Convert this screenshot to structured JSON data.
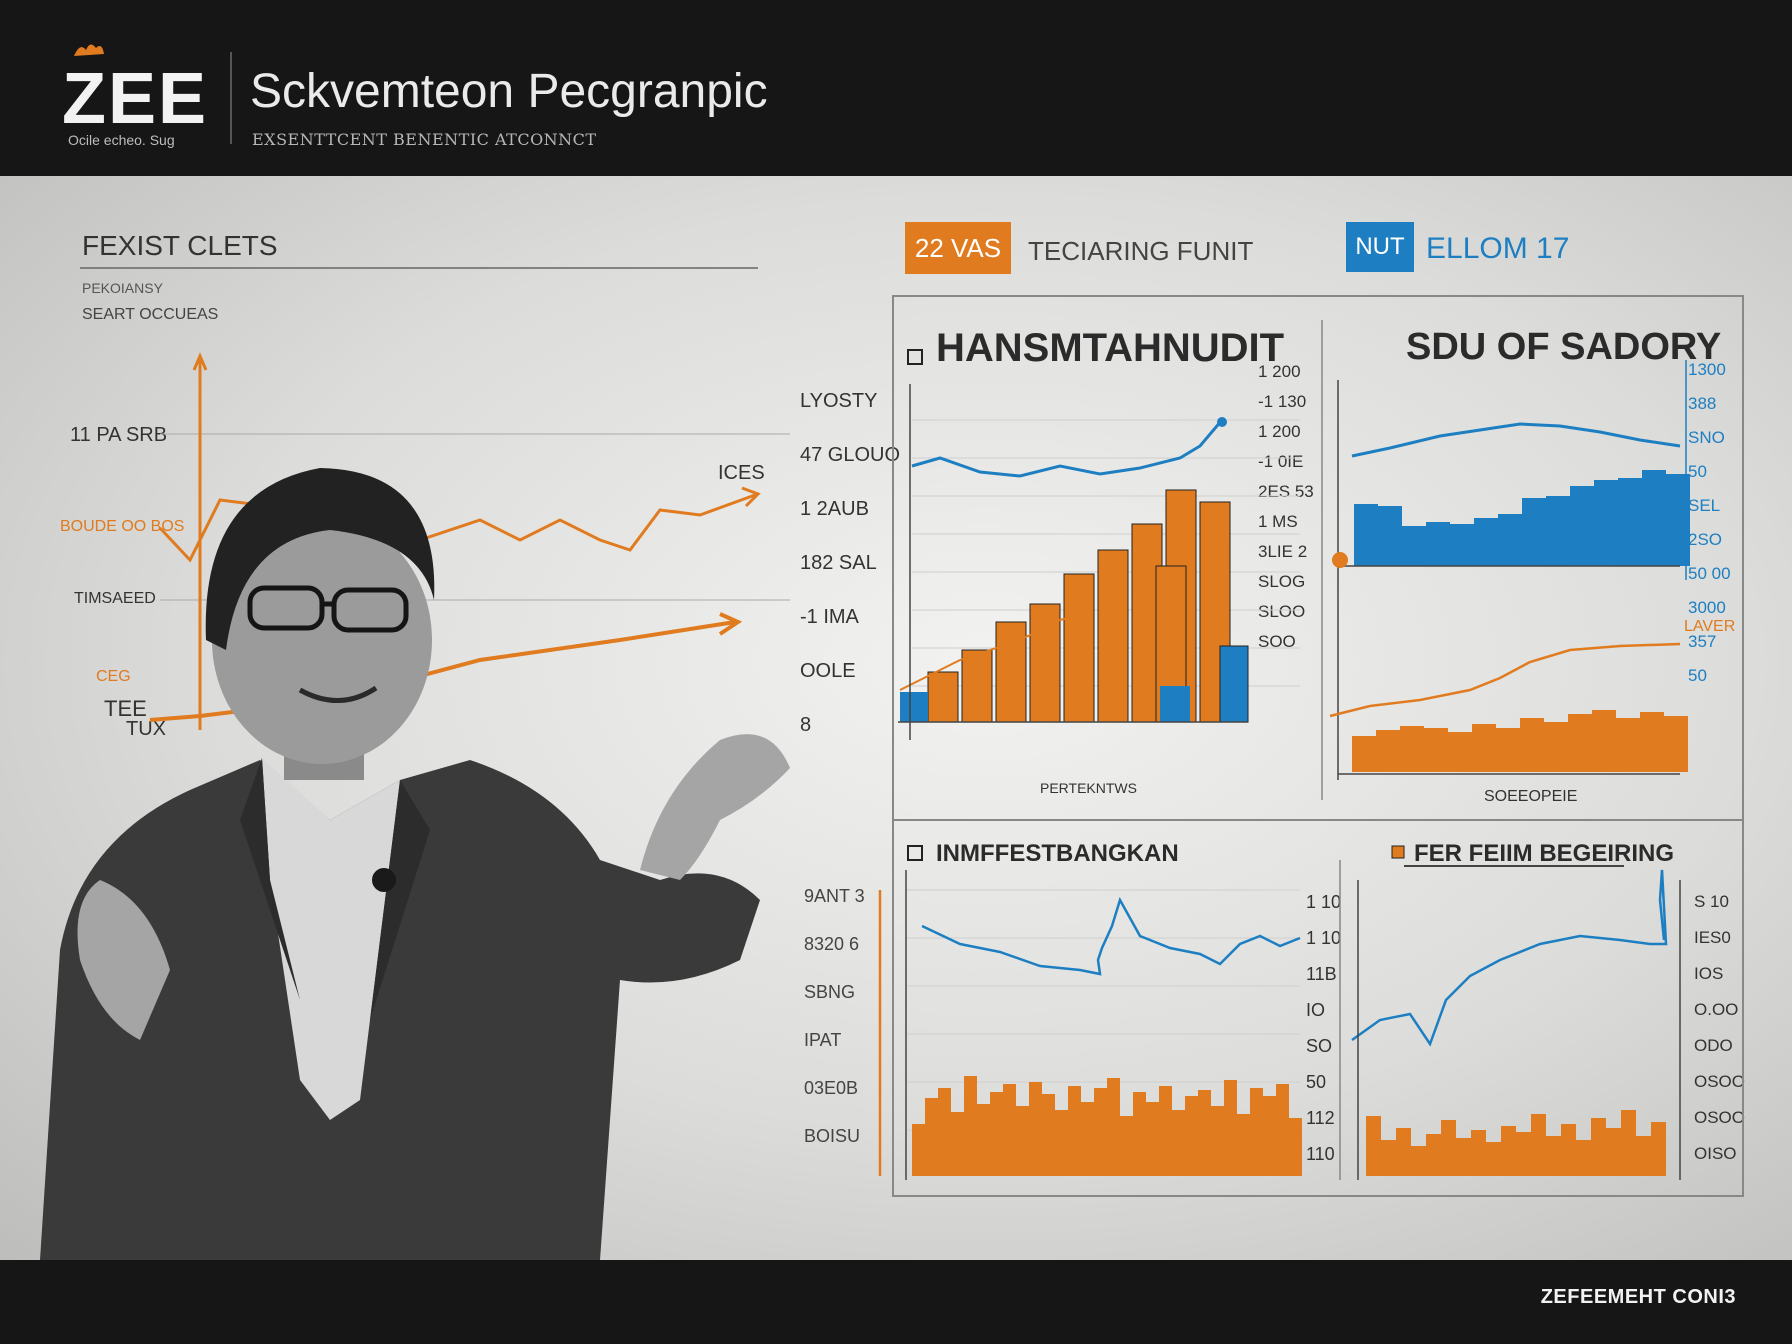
{
  "header": {
    "logo": "ZEE",
    "logo_tagline": "Ocile echeo. Sug",
    "title": "Sckvemteon Pecgranpic",
    "subtitle": "EXSENTTCENT  BENENTIC ATCONNCT"
  },
  "footer": {
    "label": "ZEFEEMEHT CONI3"
  },
  "left_panel": {
    "title": "FEXIST CLETS",
    "sub1": "PEKOIANSY",
    "sub2": "SEART OCCUEAS",
    "labels": [
      "11 PA SRB",
      "ICES",
      "BOUDE OO BOS",
      "TIMSAEED",
      "CEG",
      "TEE",
      "TUX"
    ]
  },
  "tags": {
    "orange_tag": "22 VAS",
    "orange_caption": "TECIARING FUNIT",
    "blue_tag": "NUT",
    "blue_caption": "ELLOM 17"
  },
  "charts": {
    "top_left_title": "HANSMTAHNUDIT",
    "top_right_title": "SDU OF SADORY",
    "bottom_left_title": "INMFFESTBANGKAN",
    "bottom_right_title": "FER FEIIM BEGEIRING",
    "top_left_xlabel": "PERTEKNTWS",
    "top_right_xlabel": "SOEEOPEIE",
    "top_right_corner": "LAVER",
    "tl_left_ticks": [
      "LYOSTY",
      "47 GLOUO",
      "1 2AUB",
      "182 SAL",
      "-1 IMA",
      "OOLE",
      "8"
    ],
    "tl_right_ticks": [
      "1 200",
      "-1 130",
      "1 200",
      "-1 0IE",
      "2ES 53",
      "1 MS",
      "3LIE 2",
      "SLOG",
      "SLOO",
      "SOO"
    ],
    "tr_right_ticks": [
      "1300",
      "388",
      "SNO",
      "50",
      "SEL",
      "2SO",
      "50 00",
      "3000",
      "357",
      "50"
    ],
    "bl_left_ticks": [
      "9ANT 3",
      "8320 6",
      "SBNG",
      "IPAT",
      "03E0B",
      "BOISU"
    ],
    "bl_mid_ticks": [
      "1 10",
      "1 10",
      "11B",
      "IO",
      "SO",
      "50",
      "112",
      "110"
    ],
    "br_right_ticks": [
      "S 10",
      "IES0",
      "IOS",
      "O.OO",
      "ODO",
      "OSOO",
      "OSOO",
      "OISO"
    ]
  },
  "colors": {
    "orange": "#e07b1f",
    "blue": "#1d7fc2",
    "dark": "#161616",
    "board": "#e6e6e4"
  }
}
